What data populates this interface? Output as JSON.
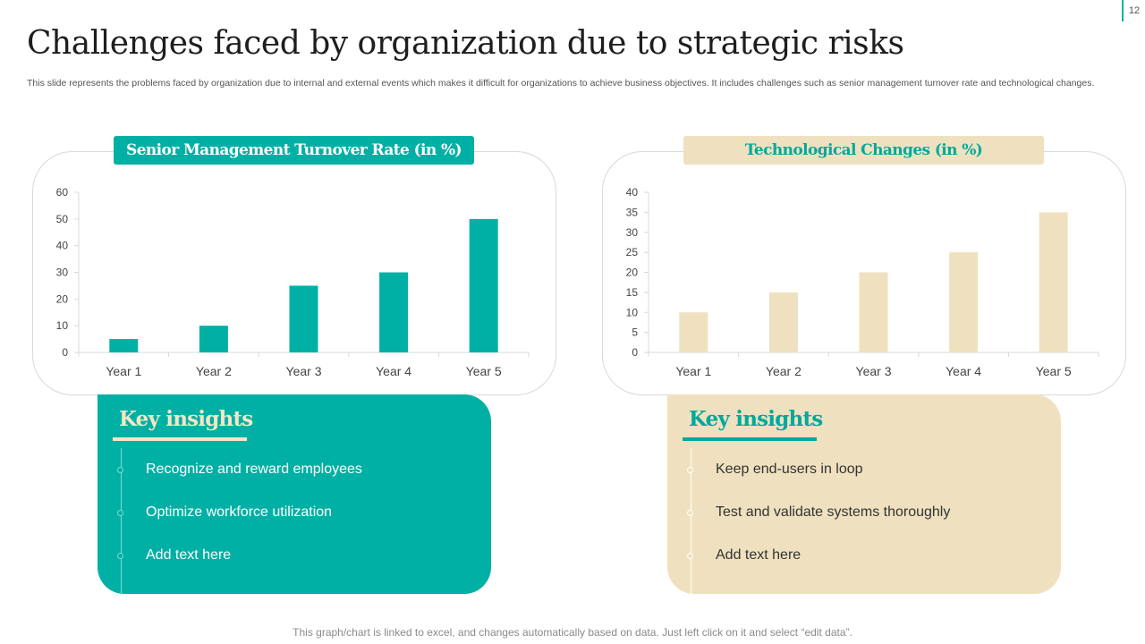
{
  "page_number": "12",
  "title": "Challenges faced by organization due to strategic risks",
  "subtitle": "This slide represents the problems faced by organization due to internal and external events which makes it difficult for organizations to achieve business objectives. It includes challenges such as senior management turnover rate and technological changes.",
  "colors": {
    "teal": "#00b0a4",
    "beige": "#efe1bf",
    "axis": "#d9d9d9",
    "text": "#444444"
  },
  "chart_data": [
    {
      "type": "bar",
      "title": "Senior Management Turnover Rate (in %)",
      "categories": [
        "Year 1",
        "Year 2",
        "Year 3",
        "Year 4",
        "Year 5"
      ],
      "values": [
        5,
        10,
        25,
        30,
        50
      ],
      "yticks": [
        0,
        10,
        20,
        30,
        40,
        50,
        60
      ],
      "ylim": [
        0,
        60
      ],
      "xlabel": "",
      "ylabel": "",
      "color": "#00b0a4",
      "grid": false
    },
    {
      "type": "bar",
      "title": "Technological Changes (in %)",
      "categories": [
        "Year 1",
        "Year 2",
        "Year 3",
        "Year 4",
        "Year 5"
      ],
      "values": [
        10,
        15,
        20,
        25,
        35
      ],
      "yticks": [
        0,
        5,
        10,
        15,
        20,
        25,
        30,
        35,
        40
      ],
      "ylim": [
        0,
        40
      ],
      "xlabel": "",
      "ylabel": "",
      "color": "#efe1bf",
      "grid": false
    }
  ],
  "insights_left": {
    "heading": "Key insights",
    "items": [
      "Recognize and reward employees",
      "Optimize workforce utilization",
      "Add text here"
    ]
  },
  "insights_right": {
    "heading": "Key insights",
    "items": [
      "Keep end-users in loop",
      "Test and validate systems thoroughly",
      "Add text here"
    ]
  },
  "footer": "This graph/chart is linked to excel, and changes automatically based on data. Just left click on it and select “edit data”."
}
